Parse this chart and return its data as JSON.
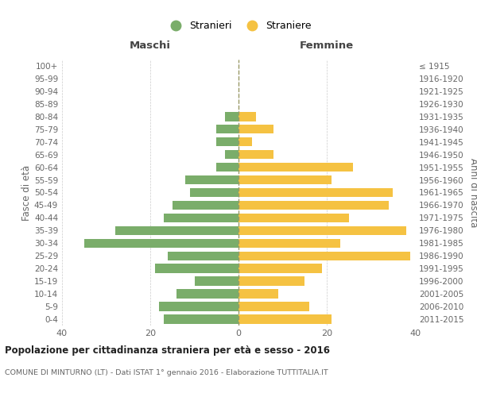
{
  "age_groups": [
    "100+",
    "95-99",
    "90-94",
    "85-89",
    "80-84",
    "75-79",
    "70-74",
    "65-69",
    "60-64",
    "55-59",
    "50-54",
    "45-49",
    "40-44",
    "35-39",
    "30-34",
    "25-29",
    "20-24",
    "15-19",
    "10-14",
    "5-9",
    "0-4"
  ],
  "birth_years": [
    "≤ 1915",
    "1916-1920",
    "1921-1925",
    "1926-1930",
    "1931-1935",
    "1936-1940",
    "1941-1945",
    "1946-1950",
    "1951-1955",
    "1956-1960",
    "1961-1965",
    "1966-1970",
    "1971-1975",
    "1976-1980",
    "1981-1985",
    "1986-1990",
    "1991-1995",
    "1996-2000",
    "2001-2005",
    "2006-2010",
    "2011-2015"
  ],
  "maschi": [
    0,
    0,
    0,
    0,
    3,
    5,
    5,
    3,
    5,
    12,
    11,
    15,
    17,
    28,
    35,
    16,
    19,
    10,
    14,
    18,
    17
  ],
  "femmine": [
    0,
    0,
    0,
    0,
    4,
    8,
    3,
    8,
    26,
    21,
    35,
    34,
    25,
    38,
    23,
    39,
    19,
    15,
    9,
    16,
    21
  ],
  "color_maschi": "#7aad6a",
  "color_femmine": "#f5c242",
  "color_center_line": "#999966",
  "xlim": 40,
  "title": "Popolazione per cittadinanza straniera per età e sesso - 2016",
  "subtitle": "COMUNE DI MINTURNO (LT) - Dati ISTAT 1° gennaio 2016 - Elaborazione TUTTITALIA.IT",
  "label_maschi": "Stranieri",
  "label_femmine": "Straniere",
  "ylabel_left": "Fasce di età",
  "ylabel_right": "Anni di nascita",
  "header_maschi": "Maschi",
  "header_femmine": "Femmine",
  "bg_color": "#ffffff",
  "grid_color": "#cccccc"
}
